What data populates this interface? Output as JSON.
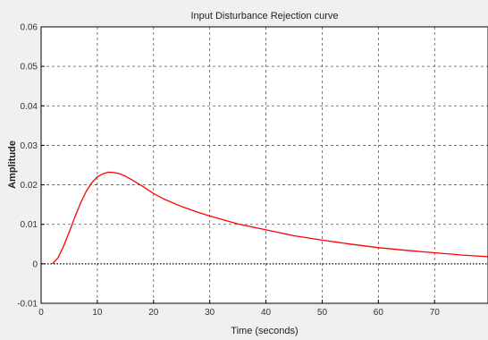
{
  "chart_data": {
    "type": "line",
    "title": "Input Disturbance Rejection curve",
    "xlabel": "Time (seconds)",
    "ylabel": "Amplitude",
    "xlim": [
      0,
      79.5
    ],
    "ylim": [
      -0.01,
      0.06
    ],
    "xticks": [
      0,
      10,
      20,
      30,
      40,
      50,
      60,
      70
    ],
    "yticks": [
      -0.01,
      0,
      0.01,
      0.02,
      0.03,
      0.04,
      0.05,
      0.06
    ],
    "xtick_labels": [
      "0",
      "10",
      "20",
      "30",
      "40",
      "50",
      "60",
      "70"
    ],
    "ytick_labels": [
      "-0.01",
      "0",
      "0.01",
      "0.02",
      "0.03",
      "0.04",
      "0.05",
      "0.06"
    ],
    "grid": true,
    "zero_line": true,
    "series": [
      {
        "color": "#ff0000",
        "x": [
          2,
          3,
          4,
          5,
          6,
          7,
          8,
          9,
          10,
          11,
          12,
          13,
          14,
          15,
          16,
          18,
          20,
          22,
          25,
          28,
          30,
          35,
          40,
          45,
          50,
          55,
          60,
          65,
          70,
          75,
          79.5
        ],
        "y": [
          0,
          0.0015,
          0.0045,
          0.008,
          0.0118,
          0.0153,
          0.0183,
          0.0205,
          0.022,
          0.0228,
          0.0232,
          0.0231,
          0.0228,
          0.0222,
          0.0214,
          0.0197,
          0.0178,
          0.0163,
          0.0145,
          0.013,
          0.0121,
          0.0101,
          0.0086,
          0.0071,
          0.006,
          0.005,
          0.0041,
          0.0034,
          0.0028,
          0.0022,
          0.0018
        ]
      }
    ]
  }
}
